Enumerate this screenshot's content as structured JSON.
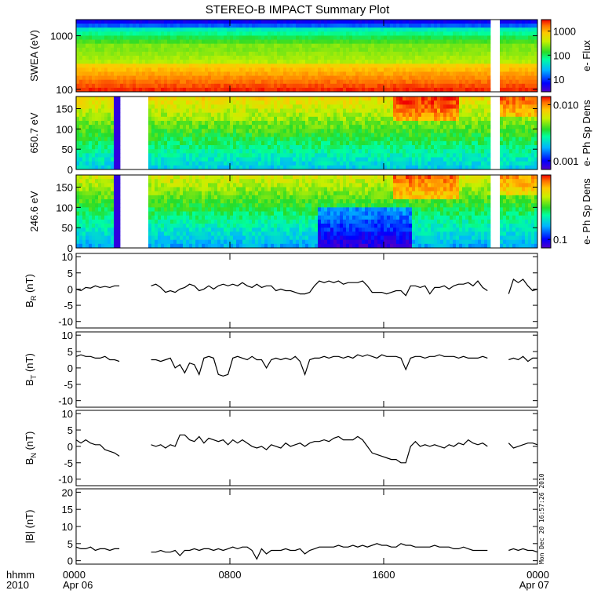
{
  "chart_data": {
    "title": "STEREO-B IMPACT Summary Plot",
    "x_axis": {
      "unit_label": "hhmm",
      "year_label": "2010",
      "range_hours": [
        0,
        24
      ],
      "ticks": [
        {
          "hour": 0,
          "time": "0000",
          "date": "Apr 06"
        },
        {
          "hour": 8,
          "time": "0800",
          "date": ""
        },
        {
          "hour": 16,
          "time": "1600",
          "date": ""
        },
        {
          "hour": 24,
          "time": "0000",
          "date": "Apr 07"
        }
      ]
    },
    "gaps_hours": {
      "swea": [
        [
          21.6,
          22.1
        ]
      ],
      "pad": [
        [
          2.3,
          3.7
        ],
        [
          21.6,
          22.1
        ]
      ],
      "mag": [
        [
          2.4,
          3.7
        ],
        [
          21.6,
          22.4
        ]
      ]
    },
    "panels": [
      {
        "id": "swea",
        "type": "heatmap",
        "ylabel": "SWEA (eV)",
        "yscale": "log",
        "ylim": [
          90,
          2000
        ],
        "yticks": [
          {
            "v": 100,
            "label": "100"
          },
          {
            "v": 1000,
            "label": "1000"
          }
        ],
        "colorbar": {
          "label": "e- Flux",
          "scale": "log",
          "range": [
            3,
            3000
          ],
          "ticks": [
            {
              "v": 10,
              "label": "10"
            },
            {
              "v": 100,
              "label": "100"
            },
            {
              "v": 1000,
              "label": "1000"
            }
          ]
        }
      },
      {
        "id": "pad650",
        "type": "heatmap",
        "ylabel": "650.7 eV",
        "yscale": "linear",
        "ylim": [
          0,
          180
        ],
        "yticks": [
          {
            "v": 0,
            "label": "0"
          },
          {
            "v": 50,
            "label": "50"
          },
          {
            "v": 100,
            "label": "100"
          },
          {
            "v": 150,
            "label": "150"
          }
        ],
        "colorbar": {
          "label": "e- Ph Sp Dens",
          "scale": "log",
          "range": [
            0.0007,
            0.014
          ],
          "ticks": [
            {
              "v": 0.001,
              "label": "0.001"
            },
            {
              "v": 0.01,
              "label": "0.010"
            }
          ]
        }
      },
      {
        "id": "pad246",
        "type": "heatmap",
        "ylabel": "246.6 eV",
        "yscale": "linear",
        "ylim": [
          0,
          180
        ],
        "yticks": [
          {
            "v": 0,
            "label": "0"
          },
          {
            "v": 50,
            "label": "50"
          },
          {
            "v": 100,
            "label": "100"
          },
          {
            "v": 150,
            "label": "150"
          }
        ],
        "colorbar": {
          "label": "e- Ph Sp Dens",
          "scale": "log",
          "range": [
            0.07,
            1.5
          ],
          "ticks": [
            {
              "v": 0.1,
              "label": "0.1"
            }
          ]
        }
      },
      {
        "id": "br",
        "type": "line",
        "ylabel": "B",
        "ylabel_sub": "R",
        "ylabel_unit": "(nT)",
        "ylim": [
          -12,
          11
        ],
        "yticks": [
          {
            "v": -10,
            "label": "-10"
          },
          {
            "v": -5,
            "label": "-5"
          },
          {
            "v": 0,
            "label": "0"
          },
          {
            "v": 5,
            "label": "5"
          },
          {
            "v": 10,
            "label": "10"
          }
        ],
        "x": [
          0,
          0.25,
          0.5,
          0.75,
          1,
          1.25,
          1.5,
          1.75,
          2,
          2.25,
          3.9,
          4.15,
          4.4,
          4.65,
          4.9,
          5.15,
          5.4,
          5.65,
          5.9,
          6.15,
          6.4,
          6.65,
          6.9,
          7.15,
          7.4,
          7.65,
          7.9,
          8.15,
          8.4,
          8.65,
          8.9,
          9.15,
          9.4,
          9.65,
          9.9,
          10.15,
          10.4,
          10.65,
          10.9,
          11.15,
          11.4,
          11.65,
          11.9,
          12.15,
          12.4,
          12.65,
          12.9,
          13.15,
          13.4,
          13.65,
          13.9,
          14.15,
          14.4,
          14.65,
          14.9,
          15.15,
          15.4,
          15.65,
          15.9,
          16.15,
          16.4,
          16.65,
          16.9,
          17.15,
          17.4,
          17.65,
          17.9,
          18.15,
          18.4,
          18.65,
          18.9,
          19.15,
          19.4,
          19.65,
          19.9,
          20.15,
          20.4,
          20.65,
          20.9,
          21.15,
          21.4,
          22.5,
          22.75,
          23,
          23.25,
          23.5,
          23.75,
          24
        ],
        "y": [
          0,
          -0.5,
          0.5,
          0.3,
          1,
          0.5,
          0.8,
          0.5,
          1,
          1,
          1,
          1.5,
          0.5,
          -1,
          -0.5,
          -1,
          0,
          0.5,
          1.5,
          1,
          -0.5,
          0,
          1,
          0,
          1,
          1.5,
          1,
          1.5,
          1,
          2,
          1,
          0.5,
          1.5,
          0.5,
          1,
          1,
          -0.5,
          0,
          -0.5,
          -0.5,
          -1,
          -1.5,
          -1.5,
          -1,
          1,
          2.5,
          2,
          2.5,
          2,
          2.5,
          1.5,
          2,
          2,
          2,
          2.5,
          1,
          -1,
          -1,
          -1,
          -1.5,
          -1,
          -0.5,
          -0.5,
          -2,
          1,
          1,
          0.5,
          1,
          -1.5,
          0.5,
          0.5,
          1,
          0,
          1,
          1.5,
          1.5,
          2,
          1,
          2.5,
          0.5,
          -0.5,
          -1.5,
          3,
          2,
          3,
          1,
          -0.5,
          0
        ]
      },
      {
        "id": "bt",
        "type": "line",
        "ylabel": "B",
        "ylabel_sub": "T",
        "ylabel_unit": "(nT)",
        "ylim": [
          -12,
          11
        ],
        "yticks": [
          {
            "v": -10,
            "label": "-10"
          },
          {
            "v": -5,
            "label": "-5"
          },
          {
            "v": 0,
            "label": "0"
          },
          {
            "v": 5,
            "label": "5"
          },
          {
            "v": 10,
            "label": "10"
          }
        ],
        "x": [
          0,
          0.25,
          0.5,
          0.75,
          1,
          1.25,
          1.5,
          1.75,
          2,
          2.25,
          3.9,
          4.15,
          4.4,
          4.65,
          4.9,
          5.15,
          5.4,
          5.65,
          5.9,
          6.15,
          6.4,
          6.65,
          6.9,
          7.15,
          7.4,
          7.65,
          7.9,
          8.15,
          8.4,
          8.65,
          8.9,
          9.15,
          9.4,
          9.65,
          9.9,
          10.15,
          10.4,
          10.65,
          10.9,
          11.15,
          11.4,
          11.65,
          11.9,
          12.15,
          12.4,
          12.65,
          12.9,
          13.15,
          13.4,
          13.65,
          13.9,
          14.15,
          14.4,
          14.65,
          14.9,
          15.15,
          15.4,
          15.65,
          15.9,
          16.15,
          16.4,
          16.65,
          16.9,
          17.15,
          17.4,
          17.65,
          17.9,
          18.15,
          18.4,
          18.65,
          18.9,
          19.15,
          19.4,
          19.65,
          19.9,
          20.15,
          20.4,
          20.65,
          20.9,
          21.15,
          21.4,
          22.5,
          22.75,
          23,
          23.25,
          23.5,
          23.75,
          24
        ],
        "y": [
          3.5,
          4,
          3.5,
          3.5,
          3,
          3,
          3.5,
          2.5,
          2.5,
          2,
          2.5,
          2.5,
          2,
          2.5,
          3,
          0,
          1,
          -1.5,
          1.5,
          1,
          -2,
          3,
          3.5,
          3,
          -2,
          -2.5,
          -2,
          3,
          3.5,
          3,
          2.5,
          3.5,
          2.5,
          2.5,
          0,
          2.5,
          3,
          2.5,
          3,
          2.5,
          3.5,
          2,
          -2,
          2.5,
          3,
          3,
          3.5,
          3,
          3.5,
          3.5,
          3,
          3.5,
          3,
          4,
          3.5,
          4,
          3.5,
          3,
          4,
          3.5,
          3.5,
          3.5,
          3,
          -0.5,
          3,
          3.5,
          3.5,
          3,
          3.5,
          3.5,
          4,
          3.5,
          3.5,
          3.5,
          3,
          3.5,
          3,
          3,
          3,
          3.5,
          3,
          2.5,
          3,
          2.5,
          3.5,
          2,
          3,
          3
        ]
      },
      {
        "id": "bn",
        "type": "line",
        "ylabel": "B",
        "ylabel_sub": "N",
        "ylabel_unit": "(nT)",
        "ylim": [
          -12,
          11
        ],
        "yticks": [
          {
            "v": -10,
            "label": "-10"
          },
          {
            "v": -5,
            "label": "-5"
          },
          {
            "v": 0,
            "label": "0"
          },
          {
            "v": 5,
            "label": "5"
          },
          {
            "v": 10,
            "label": "10"
          }
        ],
        "x": [
          0,
          0.25,
          0.5,
          0.75,
          1,
          1.25,
          1.5,
          1.75,
          2,
          2.25,
          3.9,
          4.15,
          4.4,
          4.65,
          4.9,
          5.15,
          5.4,
          5.65,
          5.9,
          6.15,
          6.4,
          6.65,
          6.9,
          7.15,
          7.4,
          7.65,
          7.9,
          8.15,
          8.4,
          8.65,
          8.9,
          9.15,
          9.4,
          9.65,
          9.9,
          10.15,
          10.4,
          10.65,
          10.9,
          11.15,
          11.4,
          11.65,
          11.9,
          12.15,
          12.4,
          12.65,
          12.9,
          13.15,
          13.4,
          13.65,
          13.9,
          14.15,
          14.4,
          14.65,
          14.9,
          15.15,
          15.4,
          15.65,
          15.9,
          16.15,
          16.4,
          16.65,
          16.9,
          17.15,
          17.4,
          17.65,
          17.9,
          18.15,
          18.4,
          18.65,
          18.9,
          19.15,
          19.4,
          19.65,
          19.9,
          20.15,
          20.4,
          20.65,
          20.9,
          21.15,
          21.4,
          22.5,
          22.75,
          23,
          23.25,
          23.5,
          23.75,
          24
        ],
        "y": [
          2,
          1,
          2,
          1,
          0.5,
          0.5,
          -1,
          -1.5,
          -2,
          -3,
          0.5,
          0,
          0.5,
          -0.5,
          0.5,
          0,
          3.5,
          3.5,
          2,
          1.5,
          3,
          1,
          2.5,
          2,
          1.5,
          2,
          0.5,
          2,
          1,
          2,
          1,
          0,
          -0.5,
          0,
          -1,
          0.5,
          0,
          -0.5,
          1,
          0,
          0.5,
          1,
          0,
          1,
          1.5,
          1.5,
          2,
          1.5,
          2.5,
          3,
          2,
          2,
          2,
          3,
          2,
          0,
          -2,
          -2.5,
          -3,
          -3.5,
          -4,
          -4,
          -5,
          -5,
          0,
          1.5,
          0,
          0.5,
          0,
          0.5,
          0,
          -0.5,
          0.5,
          0,
          1,
          0.5,
          2,
          1,
          0.5,
          1,
          0,
          1,
          -0.5,
          0,
          0.5,
          1,
          1,
          0.5
        ]
      },
      {
        "id": "bmag",
        "type": "line",
        "ylabel": "|B|",
        "ylabel_unit": "(nT)",
        "ylim": [
          -1,
          21
        ],
        "yticks": [
          {
            "v": 0,
            "label": "0"
          },
          {
            "v": 5,
            "label": "5"
          },
          {
            "v": 10,
            "label": "10"
          },
          {
            "v": 15,
            "label": "15"
          },
          {
            "v": 20,
            "label": "20"
          }
        ],
        "x": [
          0,
          0.25,
          0.5,
          0.75,
          1,
          1.25,
          1.5,
          1.75,
          2,
          2.25,
          3.9,
          4.15,
          4.4,
          4.65,
          4.9,
          5.15,
          5.4,
          5.65,
          5.9,
          6.15,
          6.4,
          6.65,
          6.9,
          7.15,
          7.4,
          7.65,
          7.9,
          8.15,
          8.4,
          8.65,
          8.9,
          9.15,
          9.4,
          9.65,
          9.9,
          10.15,
          10.4,
          10.65,
          10.9,
          11.15,
          11.4,
          11.65,
          11.9,
          12.15,
          12.4,
          12.65,
          12.9,
          13.15,
          13.4,
          13.65,
          13.9,
          14.15,
          14.4,
          14.65,
          14.9,
          15.15,
          15.4,
          15.65,
          15.9,
          16.15,
          16.4,
          16.65,
          16.9,
          17.15,
          17.4,
          17.65,
          17.9,
          18.15,
          18.4,
          18.65,
          18.9,
          19.15,
          19.4,
          19.65,
          19.9,
          20.15,
          20.4,
          20.65,
          20.9,
          21.15,
          21.4,
          22.5,
          22.75,
          23,
          23.25,
          23.5,
          23.75,
          24
        ],
        "y": [
          4,
          3.5,
          3.5,
          4,
          3,
          3.5,
          3.5,
          3,
          3.5,
          3.5,
          2.5,
          2.5,
          3,
          2.5,
          2.5,
          3,
          1.5,
          3,
          3,
          3.5,
          3,
          3.5,
          3.5,
          3,
          3.5,
          3,
          3.5,
          4,
          3.5,
          4,
          4,
          3,
          0.5,
          3.5,
          2,
          3,
          3,
          3,
          3.5,
          3,
          3,
          3.5,
          2,
          3,
          3.5,
          4,
          4,
          4,
          4,
          4.5,
          4,
          4,
          4.5,
          4,
          4.5,
          4,
          4.5,
          5,
          4.5,
          4.5,
          4,
          4,
          5,
          4.5,
          4.5,
          4,
          4,
          4,
          4,
          4.5,
          4,
          4,
          4,
          3.5,
          3.5,
          4,
          3.5,
          3,
          3,
          3,
          3,
          3,
          3.5,
          3,
          3.5,
          3,
          3,
          2.5
        ]
      }
    ],
    "timestamp": "Mon Dec 20 16:57:26 2010"
  }
}
